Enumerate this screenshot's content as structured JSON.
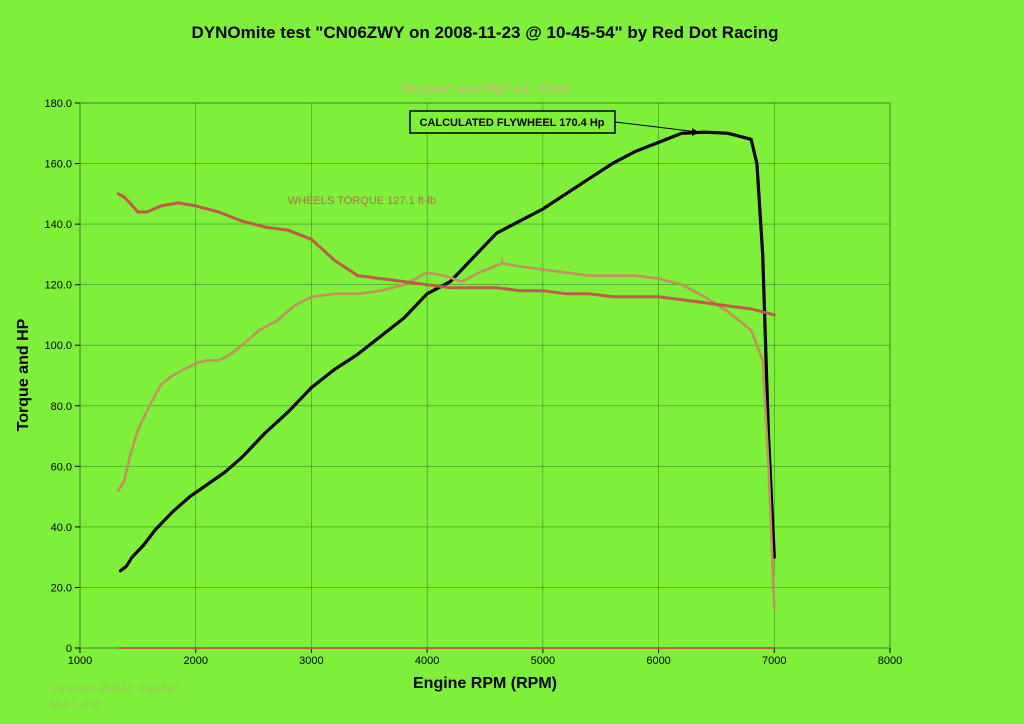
{
  "chart_data": {
    "type": "line",
    "title": "DYNOmite test \"CN06ZWY on 2008-11-23 @ 10-45-54\" by Red Dot Racing",
    "subtitle": "Torque* and Hp* vs. Time",
    "xlabel": "Engine RPM (RPM)",
    "ylabel": "Torque and HP",
    "xlim": [
      1000,
      8000
    ],
    "ylim": [
      0,
      180
    ],
    "grid": true,
    "x_ticks": [
      "1000",
      "2000",
      "3000",
      "4000",
      "5000",
      "6000",
      "7000",
      "8000"
    ],
    "y_ticks": [
      "0",
      "20.0",
      "40.0",
      "60.0",
      "80.0",
      "100.0",
      "120.0",
      "140.0",
      "160.0",
      "180.0"
    ],
    "annotations": [
      {
        "text": "CALCULATED FLYWHEEL 170.4 Hp",
        "x": 6350,
        "y": 170.4
      },
      {
        "text": "WHEELS TORQUE 127.1 ft-lb",
        "x": 4650,
        "y": 127.1
      }
    ],
    "footnotes": [
      "Correction Method: Standard",
      "Notes: STD"
    ],
    "series": [
      {
        "color": "#000000",
        "x": [
          1350,
          1400,
          1450,
          1550,
          1650,
          1800,
          1950,
          2100,
          2250,
          2400,
          2600,
          2800,
          3000,
          3200,
          3400,
          3600,
          3800,
          4000,
          4200,
          4400,
          4600,
          4800,
          5000,
          5200,
          5400,
          5600,
          5800,
          6000,
          6200,
          6400,
          6600,
          6800,
          6850,
          6900,
          6950,
          7000
        ],
        "values": [
          25.5,
          27,
          30,
          34,
          39,
          45,
          50,
          54,
          58,
          63,
          71,
          78,
          86,
          92,
          97,
          103,
          109,
          117,
          121,
          129,
          137,
          141,
          145,
          150,
          155,
          160,
          164,
          167,
          170,
          170.4,
          170,
          168,
          160,
          130,
          70,
          30
        ]
      },
      {
        "color": "#c4905e",
        "x": [
          1330,
          1380,
          1430,
          1500,
          1600,
          1700,
          1800,
          1900,
          2000,
          2100,
          2200,
          2300,
          2400,
          2550,
          2700,
          2850,
          3000,
          3200,
          3400,
          3600,
          3800,
          4000,
          4150,
          4300,
          4450,
          4650,
          4800,
          5000,
          5200,
          5400,
          5600,
          5800,
          6000,
          6200,
          6400,
          6600,
          6800,
          6900,
          6950,
          7000
        ],
        "values": [
          52,
          55,
          63,
          72,
          80,
          87,
          90,
          92,
          94,
          95,
          95,
          97,
          100,
          105,
          108,
          113,
          116,
          117,
          117,
          118,
          120,
          124,
          123,
          121,
          124,
          127.1,
          126,
          125,
          124,
          123,
          123,
          123,
          122,
          120,
          116,
          111,
          105,
          95,
          60,
          13
        ]
      },
      {
        "color": "#c05b4a",
        "x": [
          1330,
          1380,
          1430,
          1500,
          1580,
          1700,
          1850,
          2000,
          2200,
          2400,
          2600,
          2800,
          3000,
          3200,
          3400,
          3600,
          3800,
          4000,
          4200,
          4400,
          4600,
          4800,
          5000,
          5200,
          5400,
          5600,
          5800,
          6000,
          6200,
          6400,
          6600,
          6800,
          7000
        ],
        "values": [
          150,
          149,
          147,
          144,
          144,
          146,
          147,
          146,
          144,
          141,
          139,
          138,
          135,
          128,
          123,
          122,
          121,
          120,
          119,
          119,
          119,
          118,
          118,
          117,
          117,
          116,
          116,
          116,
          115,
          114,
          113,
          112,
          110
        ]
      }
    ]
  }
}
